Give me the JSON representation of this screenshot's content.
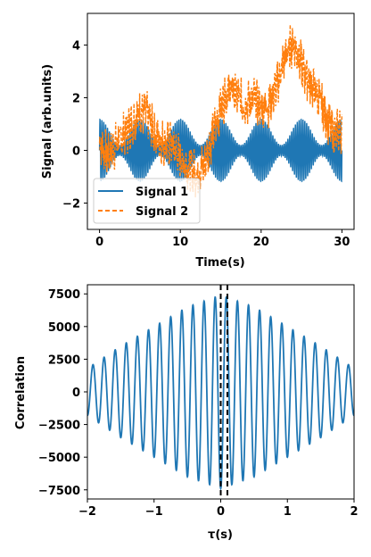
{
  "chart_data": [
    {
      "type": "line",
      "title": "",
      "xlabel": "Time(s)",
      "ylabel": "Signal (arb.units)",
      "xlim": [
        -1.5,
        31.5
      ],
      "ylim": [
        -3.0,
        5.2
      ],
      "xticks": [
        0,
        10,
        20,
        30
      ],
      "yticks": [
        -2,
        0,
        2,
        4
      ],
      "legend": {
        "placement": "lower-left"
      },
      "grid": false,
      "series": [
        {
          "name": "Signal 1",
          "color": "#1f77b4",
          "style": "solid",
          "description_of_values": "rapid oscillation with envelope",
          "x": [
            0,
            2.5,
            5,
            7.5,
            10,
            12.5,
            15,
            17.5,
            20,
            22.5,
            25,
            27.5,
            30
          ],
          "envelope": [
            1.2,
            0.2,
            1.2,
            0.2,
            1.25,
            0.2,
            1.25,
            0.2,
            1.25,
            0.2,
            1.25,
            0.2,
            1.25
          ]
        },
        {
          "name": "Signal 2",
          "color": "#ff7f0e",
          "style": "dashed",
          "x": [
            0,
            1,
            2,
            3,
            4,
            5,
            6,
            7,
            8,
            9,
            10,
            11,
            12,
            13,
            14,
            15,
            16,
            17,
            18,
            19,
            20,
            21,
            22,
            23,
            24,
            25,
            26,
            27,
            28,
            29,
            30
          ],
          "y": [
            0.3,
            -0.2,
            0.2,
            0.6,
            1.0,
            1.5,
            1.3,
            0.5,
            0.3,
            0.2,
            -0.3,
            -0.6,
            -0.9,
            -0.5,
            0.6,
            1.6,
            2.4,
            2.1,
            1.7,
            2.0,
            1.6,
            1.8,
            2.5,
            3.6,
            4.1,
            3.2,
            2.6,
            2.1,
            1.3,
            0.6,
            0.8
          ]
        }
      ]
    },
    {
      "type": "line",
      "title": "",
      "xlabel": "τ(s)",
      "ylabel": "Correlation",
      "xlim": [
        -2,
        2
      ],
      "ylim": [
        -8200,
        8200
      ],
      "xticks": [
        -2,
        -1,
        0,
        1,
        2
      ],
      "yticks": [
        -7500,
        -5000,
        -2500,
        0,
        2500,
        5000,
        7500
      ],
      "grid": false,
      "series": [
        {
          "color": "#1f77b4",
          "style": "solid",
          "description_of_values": "cross-correlation oscillation",
          "tau": [
            -2,
            -1.5,
            -1,
            -0.5,
            0,
            0.5,
            1,
            1.5,
            2
          ],
          "amplitude": [
            1800,
            3500,
            5000,
            6500,
            7400,
            6500,
            5000,
            3500,
            1800
          ]
        }
      ],
      "vlines": [
        0.0,
        0.1
      ]
    }
  ]
}
